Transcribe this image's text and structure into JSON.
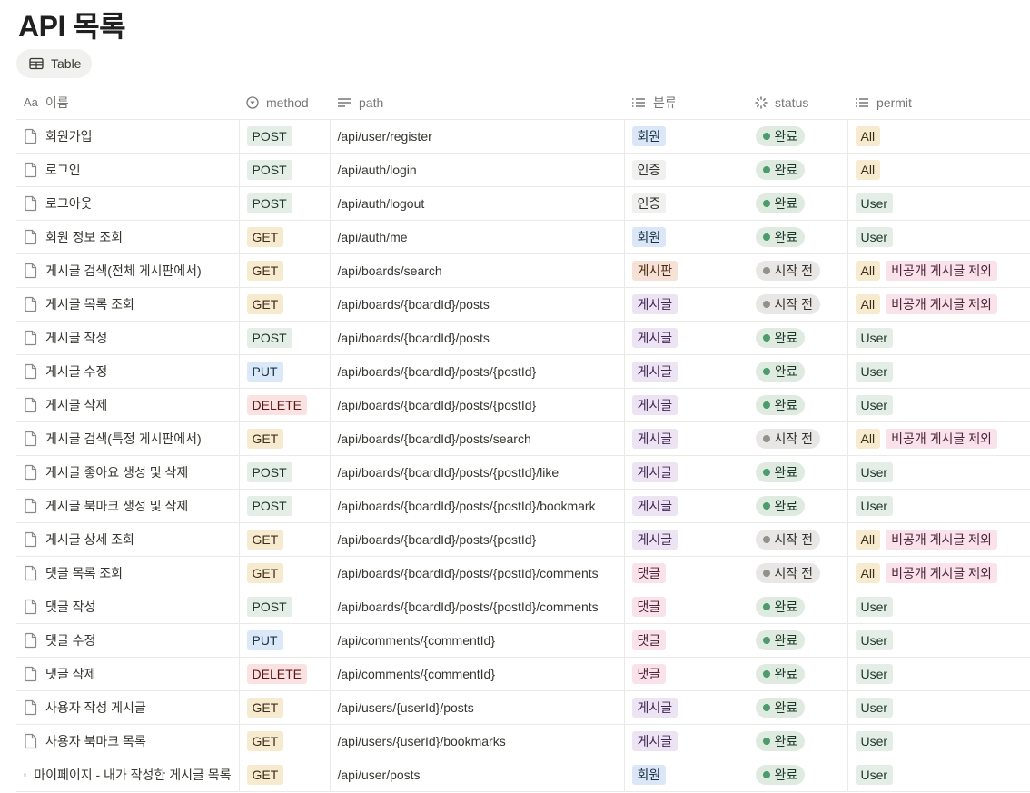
{
  "title": "API 목록",
  "view_tab": "Table",
  "columns": {
    "name": "이름",
    "method": "method",
    "path": "path",
    "category": "분류",
    "status": "status",
    "permit": "permit"
  },
  "colors": {
    "method": {
      "POST": [
        "#e5ede7",
        "#1c3829"
      ],
      "GET": [
        "#f6ebcf",
        "#402c1b"
      ],
      "PUT": [
        "#dbe8f8",
        "#183347"
      ],
      "DELETE": [
        "#fbe2e2",
        "#5d1715"
      ]
    },
    "category": {
      "회원": [
        "#dbe6f6",
        "#183347"
      ],
      "인증": [
        "#f0f0ee",
        "#32302c"
      ],
      "게시판": [
        "#f5e1d5",
        "#49290e"
      ],
      "게시글": [
        "#ece4f2",
        "#412454"
      ],
      "댓글": [
        "#f9e2ea",
        "#4c2337"
      ]
    },
    "status": {
      "완료": [
        "#dfebe1",
        "#1c3829",
        "#4d9a6a"
      ],
      "시작 전": [
        "#e8e7e5",
        "#32302c",
        "#91918e"
      ]
    },
    "permit": {
      "All": [
        "#f6ebcf",
        "#402c1b"
      ],
      "User": [
        "#e5ede7",
        "#1c3829"
      ],
      "비공개 게시글 제외": [
        "#f9e2ea",
        "#4c2337"
      ]
    }
  },
  "rows": [
    {
      "name": "회원가입",
      "method": "POST",
      "path": "/api/user/register",
      "category": "회원",
      "status": "완료",
      "permit": [
        "All"
      ]
    },
    {
      "name": "로그인",
      "method": "POST",
      "path": "/api/auth/login",
      "category": "인증",
      "status": "완료",
      "permit": [
        "All"
      ]
    },
    {
      "name": "로그아웃",
      "method": "POST",
      "path": "/api/auth/logout",
      "category": "인증",
      "status": "완료",
      "permit": [
        "User"
      ]
    },
    {
      "name": "회원 정보 조회",
      "method": "GET",
      "path": "/api/auth/me",
      "category": "회원",
      "status": "완료",
      "permit": [
        "User"
      ]
    },
    {
      "name": "게시글 검색(전체 게시판에서)",
      "method": "GET",
      "path": "/api/boards/search",
      "category": "게시판",
      "status": "시작 전",
      "permit": [
        "All",
        "비공개 게시글 제외"
      ]
    },
    {
      "name": "게시글 목록 조회",
      "method": "GET",
      "path": "/api/boards/{boardId}/posts",
      "category": "게시글",
      "status": "시작 전",
      "permit": [
        "All",
        "비공개 게시글 제외"
      ]
    },
    {
      "name": "게시글 작성",
      "method": "POST",
      "path": "/api/boards/{boardId}/posts",
      "category": "게시글",
      "status": "완료",
      "permit": [
        "User"
      ]
    },
    {
      "name": "게시글 수정",
      "method": "PUT",
      "path": "/api/boards/{boardId}/posts/{postId}",
      "category": "게시글",
      "status": "완료",
      "permit": [
        "User"
      ]
    },
    {
      "name": "게시글 삭제",
      "method": "DELETE",
      "path": "/api/boards/{boardId}/posts/{postId}",
      "category": "게시글",
      "status": "완료",
      "permit": [
        "User"
      ]
    },
    {
      "name": "게시글 검색(특정 게시판에서)",
      "method": "GET",
      "path": "/api/boards/{boardId}/posts/search",
      "category": "게시글",
      "status": "시작 전",
      "permit": [
        "All",
        "비공개 게시글 제외"
      ]
    },
    {
      "name": "게시글 좋아요 생성 및 삭제",
      "method": "POST",
      "path": "/api/boards/{boardId}/posts/{postId}/like",
      "category": "게시글",
      "status": "완료",
      "permit": [
        "User"
      ]
    },
    {
      "name": "게시글 북마크 생성 및 삭제",
      "method": "POST",
      "path": "/api/boards/{boardId}/posts/{postId}/bookmark",
      "category": "게시글",
      "status": "완료",
      "permit": [
        "User"
      ]
    },
    {
      "name": "게시글 상세 조회",
      "method": "GET",
      "path": "/api/boards/{boardId}/posts/{postId}",
      "category": "게시글",
      "status": "시작 전",
      "permit": [
        "All",
        "비공개 게시글 제외"
      ]
    },
    {
      "name": "댓글 목록 조회",
      "method": "GET",
      "path": "/api/boards/{boardId}/posts/{postId}/comments",
      "category": "댓글",
      "status": "시작 전",
      "permit": [
        "All",
        "비공개 게시글 제외"
      ]
    },
    {
      "name": "댓글 작성",
      "method": "POST",
      "path": "/api/boards/{boardId}/posts/{postId}/comments",
      "category": "댓글",
      "status": "완료",
      "permit": [
        "User"
      ]
    },
    {
      "name": "댓글 수정",
      "method": "PUT",
      "path": "/api/comments/{commentId}",
      "category": "댓글",
      "status": "완료",
      "permit": [
        "User"
      ]
    },
    {
      "name": "댓글 삭제",
      "method": "DELETE",
      "path": "/api/comments/{commentId}",
      "category": "댓글",
      "status": "완료",
      "permit": [
        "User"
      ]
    },
    {
      "name": "사용자 작성 게시글",
      "method": "GET",
      "path": "/api/users/{userId}/posts",
      "category": "게시글",
      "status": "완료",
      "permit": [
        "User"
      ]
    },
    {
      "name": "사용자 북마크 목록",
      "method": "GET",
      "path": "/api/users/{userId}/bookmarks",
      "category": "게시글",
      "status": "완료",
      "permit": [
        "User"
      ]
    },
    {
      "name": "마이페이지 - 내가 작성한 게시글 목록",
      "method": "GET",
      "path": "/api/user/posts",
      "category": "회원",
      "status": "완료",
      "permit": [
        "User"
      ]
    }
  ]
}
